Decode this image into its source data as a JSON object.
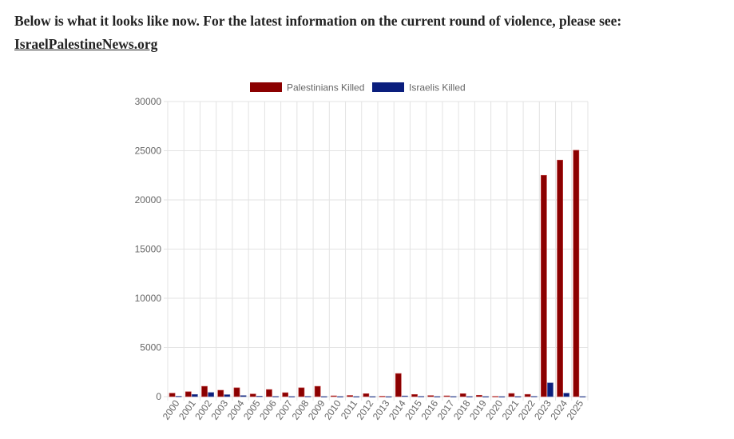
{
  "intro": {
    "text": "Below is what it looks like now. For the latest information on the current round of violence, please see:",
    "link": "IsraelPalestineNews.org"
  },
  "chart_data": {
    "type": "bar",
    "categories": [
      "2000",
      "2001",
      "2002",
      "2003",
      "2004",
      "2005",
      "2006",
      "2007",
      "2008",
      "2009",
      "2010",
      "2011",
      "2012",
      "2013",
      "2014",
      "2015",
      "2016",
      "2017",
      "2018",
      "2019",
      "2020",
      "2021",
      "2022",
      "2023",
      "2024",
      "2025"
    ],
    "series": [
      {
        "name": "Palestinians Killed",
        "color": "#8b0000",
        "values": [
          350,
          500,
          1050,
          650,
          900,
          270,
          720,
          400,
          900,
          1050,
          80,
          120,
          300,
          40,
          2350,
          220,
          110,
          80,
          300,
          140,
          30,
          320,
          230,
          22500,
          24050,
          25050
        ]
      },
      {
        "name": "Israelis Killed",
        "color": "#0a1e7d",
        "values": [
          40,
          220,
          420,
          200,
          110,
          50,
          25,
          15,
          30,
          10,
          10,
          10,
          10,
          5,
          70,
          30,
          15,
          20,
          15,
          10,
          5,
          15,
          30,
          1400,
          350,
          10
        ]
      }
    ],
    "yticks": [
      "0",
      "5000",
      "10000",
      "15000",
      "20000",
      "25000",
      "30000"
    ],
    "ylim": [
      0,
      30000
    ],
    "grid": true,
    "legend": "top"
  }
}
